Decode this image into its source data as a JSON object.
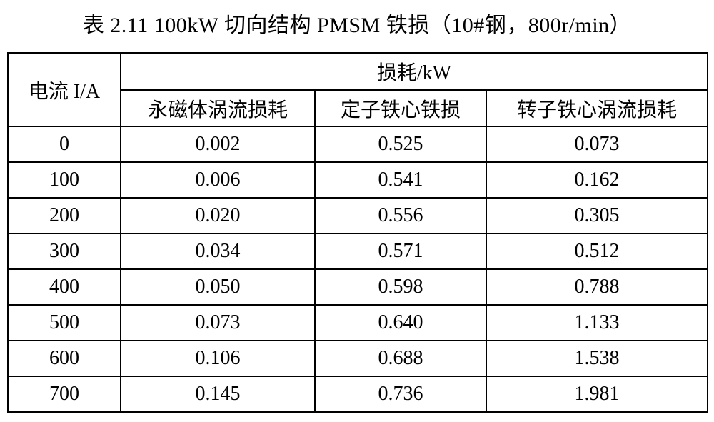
{
  "title": "表 2.11 100kW 切向结构 PMSM 铁损（10#钢，800r/min）",
  "table": {
    "corner_header": "电流 I/A",
    "group_header": "损耗/kW",
    "sub_headers": [
      "永磁体涡流损耗",
      "定子铁心铁损",
      "转子铁心涡流损耗"
    ],
    "rows": [
      [
        "0",
        "0.002",
        "0.525",
        "0.073"
      ],
      [
        "100",
        "0.006",
        "0.541",
        "0.162"
      ],
      [
        "200",
        "0.020",
        "0.556",
        "0.305"
      ],
      [
        "300",
        "0.034",
        "0.571",
        "0.512"
      ],
      [
        "400",
        "0.050",
        "0.598",
        "0.788"
      ],
      [
        "500",
        "0.073",
        "0.640",
        "1.133"
      ],
      [
        "600",
        "0.106",
        "0.688",
        "1.538"
      ],
      [
        "700",
        "0.145",
        "0.736",
        "1.981"
      ]
    ]
  },
  "colors": {
    "background": "#ffffff",
    "text": "#000000",
    "border": "#000000"
  }
}
